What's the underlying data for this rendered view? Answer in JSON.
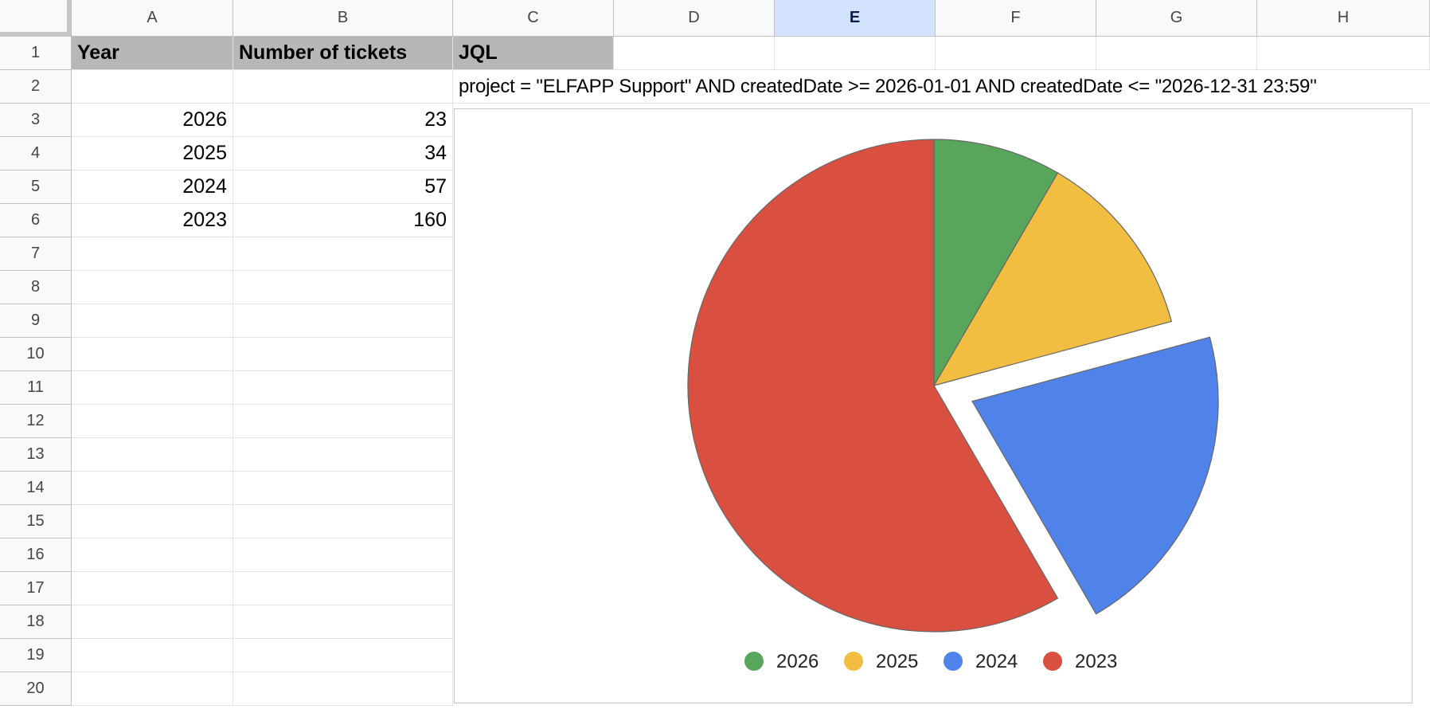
{
  "columns": [
    "A",
    "B",
    "C",
    "D",
    "E",
    "F",
    "G",
    "H"
  ],
  "selected_column": "E",
  "rows": [
    "1",
    "2",
    "3",
    "4",
    "5",
    "6",
    "7",
    "8",
    "9",
    "10",
    "11",
    "12",
    "13",
    "14",
    "15",
    "16",
    "17",
    "18",
    "19",
    "20"
  ],
  "cells": {
    "A1": "Year",
    "B1": "Number of tickets",
    "C1": "JQL",
    "C2": "project = \"ELFAPP Support\" AND createdDate >= 2026-01-01 AND createdDate <= \"2026-12-31 23:59\"",
    "A3": "2026",
    "B3": "23",
    "A4": "2025",
    "B4": "34",
    "A5": "2024",
    "B5": "57",
    "A6": "2023",
    "B6": "160"
  },
  "colors": {
    "header_fill": "#b7b7b7",
    "selected_column_fill": "#d3e3fd"
  },
  "chart_data": {
    "type": "pie",
    "categories": [
      "2026",
      "2025",
      "2024",
      "2023"
    ],
    "values": [
      23,
      34,
      57,
      160
    ],
    "colors": [
      "#57a65b",
      "#f1be42",
      "#5083ea",
      "#d95040"
    ],
    "exploded": [
      "2024"
    ],
    "legend_position": "bottom"
  }
}
